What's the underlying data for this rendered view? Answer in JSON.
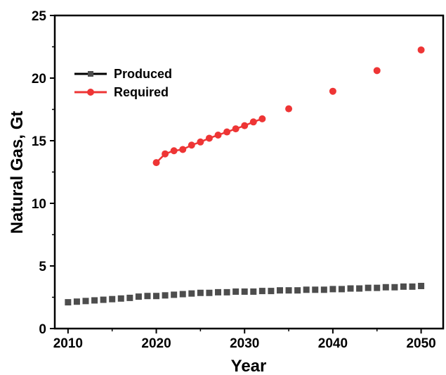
{
  "chart_data": {
    "type": "scatter",
    "xlabel": "Year",
    "ylabel": "Natural Gas, Gt",
    "xlim": [
      2008.5,
      2052.5
    ],
    "ylim": [
      0,
      25
    ],
    "x_ticks": [
      "2010",
      "2020",
      "2030",
      "2040",
      "2050"
    ],
    "y_ticks": [
      "0",
      "5",
      "10",
      "15",
      "20",
      "25"
    ],
    "x_tick_values": [
      2010,
      2020,
      2030,
      2040,
      2050
    ],
    "y_tick_values": [
      0,
      5,
      10,
      15,
      20,
      25
    ],
    "grid": false,
    "legend_position": "top-left",
    "series": [
      {
        "name": "Produced",
        "color": "#4d4d4d",
        "marker": "square",
        "x": [
          2010,
          2011,
          2012,
          2013,
          2014,
          2015,
          2016,
          2017,
          2018,
          2019,
          2020,
          2021,
          2022,
          2023,
          2024,
          2025,
          2026,
          2027,
          2028,
          2029,
          2030,
          2031,
          2032,
          2033,
          2034,
          2035,
          2036,
          2037,
          2038,
          2039,
          2040,
          2041,
          2042,
          2043,
          2044,
          2045,
          2046,
          2047,
          2048,
          2049,
          2050
        ],
        "y": [
          2.1,
          2.15,
          2.2,
          2.25,
          2.3,
          2.35,
          2.4,
          2.45,
          2.55,
          2.6,
          2.6,
          2.65,
          2.7,
          2.75,
          2.8,
          2.85,
          2.85,
          2.9,
          2.9,
          2.95,
          2.95,
          2.95,
          3.0,
          3.0,
          3.05,
          3.05,
          3.05,
          3.1,
          3.1,
          3.1,
          3.15,
          3.15,
          3.2,
          3.2,
          3.25,
          3.25,
          3.3,
          3.3,
          3.35,
          3.35,
          3.4
        ]
      },
      {
        "name": "Required",
        "color": "#ee3535",
        "marker": "circle",
        "x": [
          2020,
          2021,
          2022,
          2023,
          2024,
          2025,
          2026,
          2027,
          2028,
          2029,
          2030,
          2031,
          2032,
          2035,
          2040,
          2045,
          2050
        ],
        "y": [
          13.25,
          13.95,
          14.2,
          14.3,
          14.65,
          14.9,
          15.2,
          15.45,
          15.7,
          15.95,
          16.2,
          16.5,
          16.75,
          17.55,
          18.95,
          20.6,
          22.25
        ],
        "connected_through": 2032
      }
    ]
  }
}
